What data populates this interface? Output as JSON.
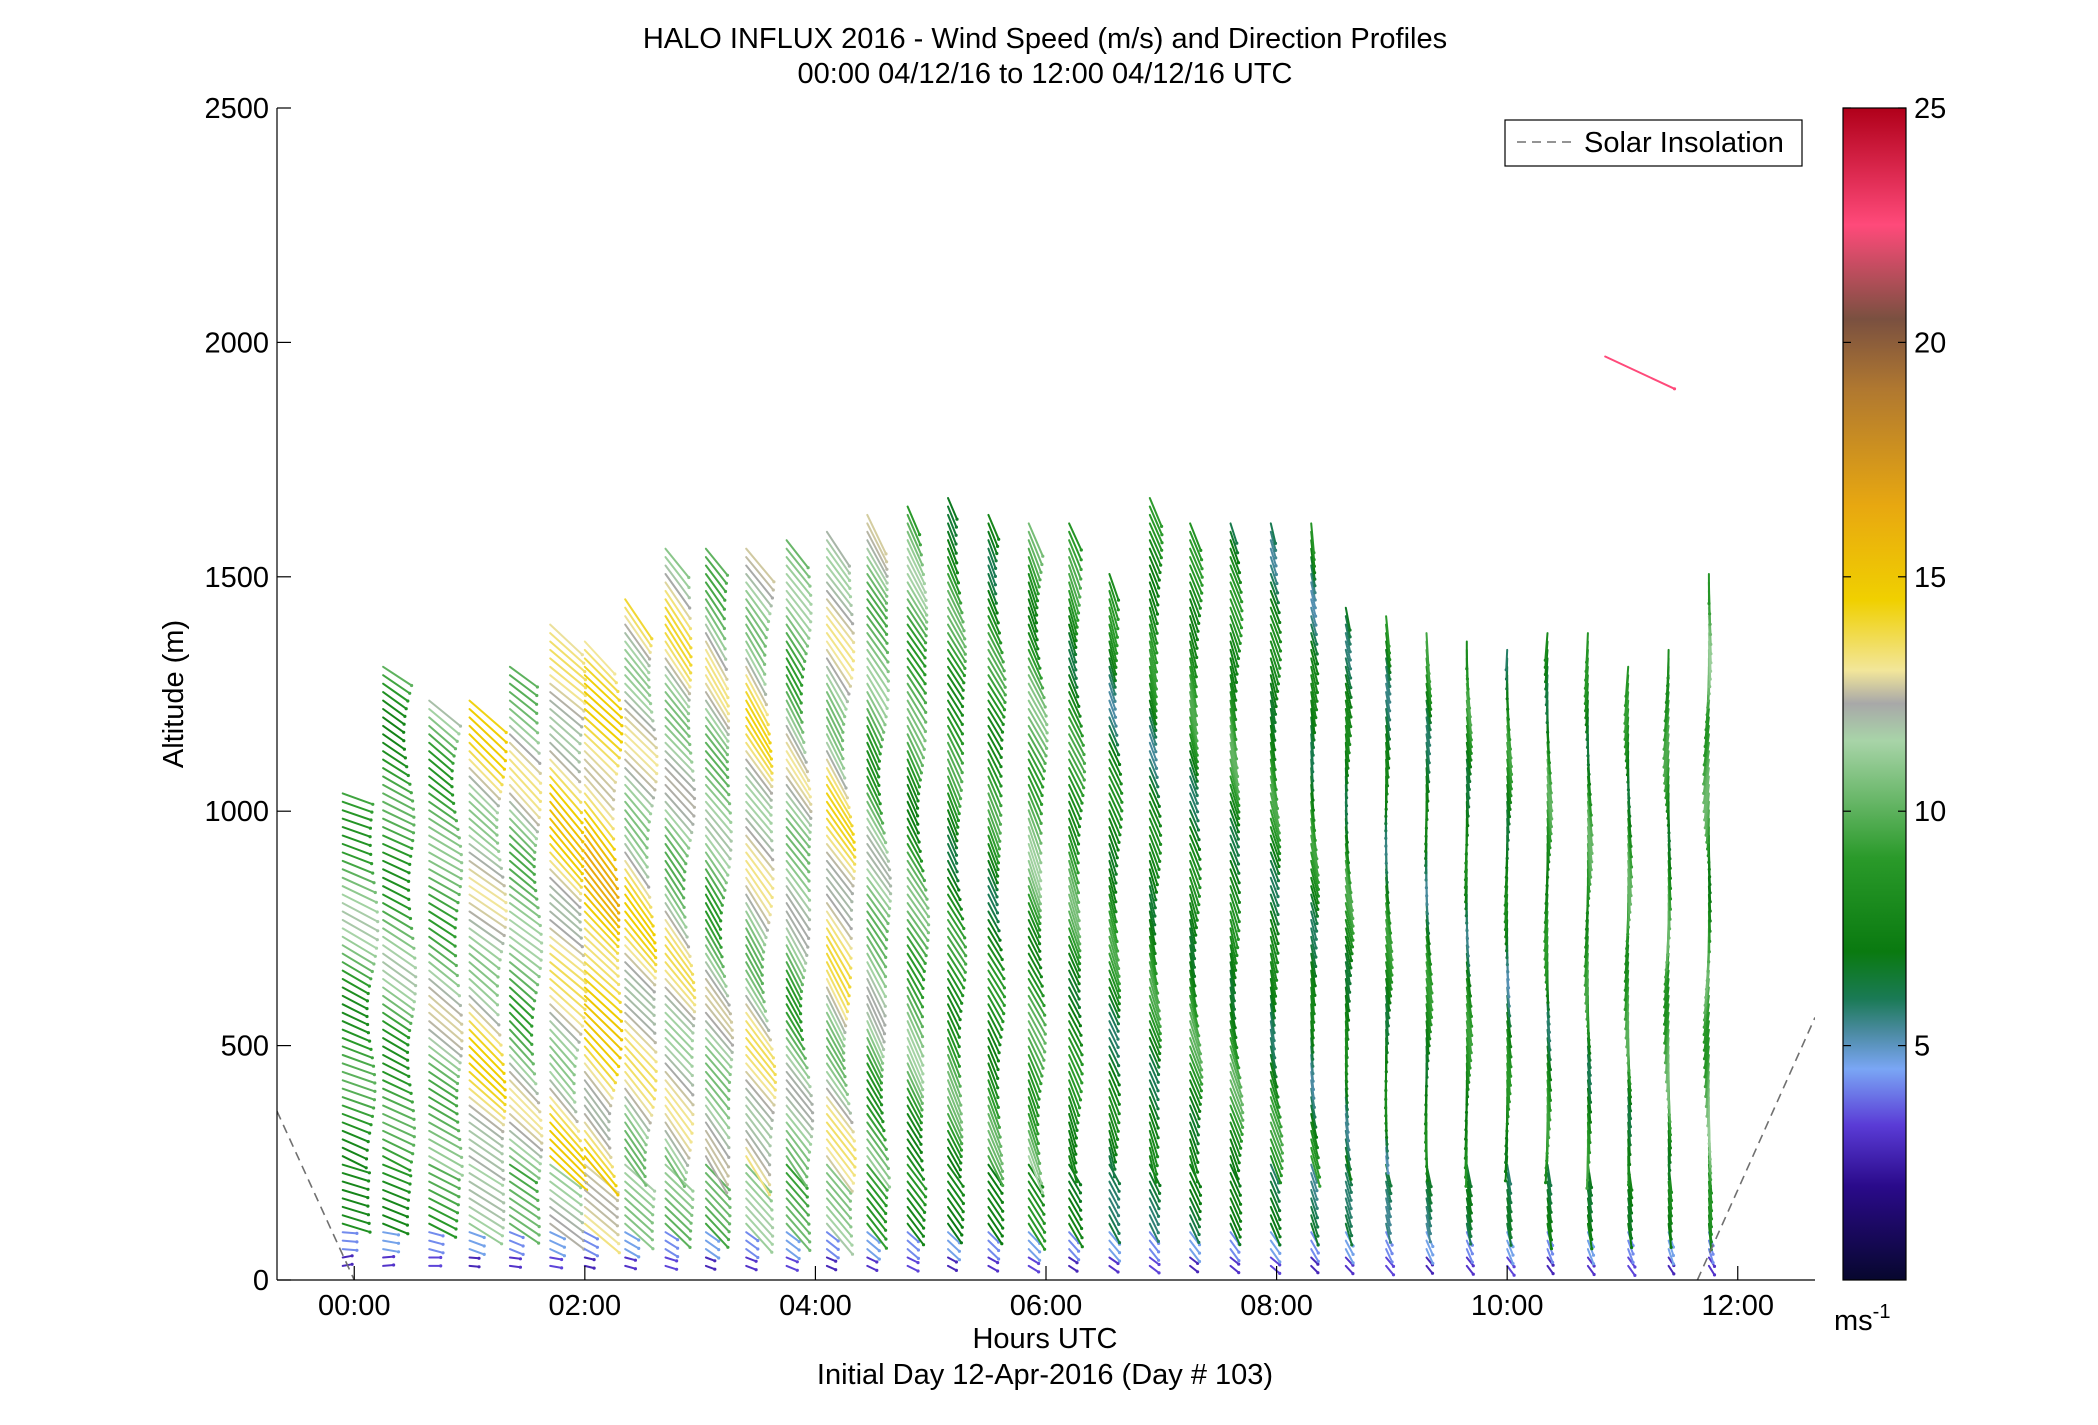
{
  "chart_data": {
    "type": "quiver",
    "title": "HALO INFLUX 2016 - Wind Speed (m/s) and Direction Profiles",
    "subtitle": "00:00 04/12/16 to 12:00 04/12/16  UTC",
    "xlabel": "Hours UTC",
    "xlabel2": "Initial Day 12-Apr-2016 (Day # 103)",
    "ylabel": "Altitude (m)",
    "xlim": [
      -0.67,
      12.67
    ],
    "ylim": [
      0,
      2500
    ],
    "x_ticks": [
      0,
      2,
      4,
      6,
      8,
      10,
      12
    ],
    "x_tick_labels": [
      "00:00",
      "02:00",
      "04:00",
      "06:00",
      "08:00",
      "10:00",
      "12:00"
    ],
    "y_ticks": [
      0,
      500,
      1000,
      1500,
      2000,
      2500
    ],
    "y_tick_labels": [
      "0",
      "500",
      "1000",
      "1500",
      "2000",
      "2500"
    ],
    "grid": false,
    "legend": {
      "location": "top-right",
      "entries": [
        {
          "label": "Solar Insolation",
          "style": "dashed",
          "color": "#707070"
        }
      ]
    },
    "colorbar": {
      "range": [
        0,
        25
      ],
      "ticks": [
        5,
        10,
        15,
        20,
        25
      ],
      "tick_labels": [
        "5",
        "10",
        "15",
        "20",
        "25"
      ],
      "unit_base": "ms",
      "unit_exp": "-1",
      "stops": [
        {
          "v": 0,
          "color": "#07072e"
        },
        {
          "v": 2,
          "color": "#2a0a8a"
        },
        {
          "v": 3.3,
          "color": "#5a3bd6"
        },
        {
          "v": 4.5,
          "color": "#7aa6f5"
        },
        {
          "v": 5.3,
          "color": "#4a8aa0"
        },
        {
          "v": 6,
          "color": "#1a7a55"
        },
        {
          "v": 7,
          "color": "#0a7a10"
        },
        {
          "v": 9,
          "color": "#2a9a2a"
        },
        {
          "v": 11.5,
          "color": "#a8d4a8"
        },
        {
          "v": 12.3,
          "color": "#a8a8a8"
        },
        {
          "v": 13,
          "color": "#f2e69a"
        },
        {
          "v": 14.5,
          "color": "#f0d000"
        },
        {
          "v": 16.5,
          "color": "#e8a810"
        },
        {
          "v": 19,
          "color": "#b07830"
        },
        {
          "v": 20.5,
          "color": "#7a5040"
        },
        {
          "v": 22.5,
          "color": "#ff4a7a"
        },
        {
          "v": 25,
          "color": "#b0001a"
        }
      ]
    },
    "solar_insolation": [
      {
        "x": -0.67,
        "y": 360
      },
      {
        "x": 0.0,
        "y": 0
      },
      {
        "x": 11.65,
        "y": 0
      },
      {
        "x": 12.67,
        "y": 560
      }
    ],
    "profiles": [
      {
        "t": -0.1,
        "top": 1040,
        "speed": 9.5,
        "dir": 295
      },
      {
        "t": 0.25,
        "top": 1310,
        "speed": 9.5,
        "dir": 300
      },
      {
        "t": 0.65,
        "top": 1250,
        "speed": 10.5,
        "dir": 305
      },
      {
        "t": 1.0,
        "top": 1240,
        "speed": 12.5,
        "dir": 310
      },
      {
        "t": 1.35,
        "top": 1320,
        "speed": 11,
        "dir": 312
      },
      {
        "t": 1.7,
        "top": 1400,
        "speed": 13,
        "dir": 315
      },
      {
        "t": 2.0,
        "top": 1370,
        "speed": 14.2,
        "dir": 318
      },
      {
        "t": 2.35,
        "top": 1460,
        "speed": 12.5,
        "dir": 320
      },
      {
        "t": 2.7,
        "top": 1560,
        "speed": 11.8,
        "dir": 322
      },
      {
        "t": 3.05,
        "top": 1560,
        "speed": 11,
        "dir": 325
      },
      {
        "t": 3.4,
        "top": 1560,
        "speed": 12.2,
        "dir": 326
      },
      {
        "t": 3.75,
        "top": 1590,
        "speed": 11,
        "dir": 327
      },
      {
        "t": 4.1,
        "top": 1600,
        "speed": 12.5,
        "dir": 328
      },
      {
        "t": 4.45,
        "top": 1640,
        "speed": 10.5,
        "dir": 330
      },
      {
        "t": 4.8,
        "top": 1650,
        "speed": 9.5,
        "dir": 331
      },
      {
        "t": 5.15,
        "top": 1680,
        "speed": 8.5,
        "dir": 333
      },
      {
        "t": 5.5,
        "top": 1640,
        "speed": 8.2,
        "dir": 334
      },
      {
        "t": 5.85,
        "top": 1630,
        "speed": 9.5,
        "dir": 336
      },
      {
        "t": 6.2,
        "top": 1620,
        "speed": 8.5,
        "dir": 338
      },
      {
        "t": 6.55,
        "top": 1510,
        "speed": 7.5,
        "dir": 340
      },
      {
        "t": 6.9,
        "top": 1680,
        "speed": 7.5,
        "dir": 342
      },
      {
        "t": 7.25,
        "top": 1630,
        "speed": 7.8,
        "dir": 343
      },
      {
        "t": 7.6,
        "top": 1630,
        "speed": 8,
        "dir": 344
      },
      {
        "t": 7.95,
        "top": 1630,
        "speed": 7.5,
        "dir": 345
      },
      {
        "t": 8.3,
        "top": 1620,
        "speed": 7.2,
        "dir": 350
      },
      {
        "t": 8.6,
        "top": 1440,
        "speed": 7.5,
        "dir": 352
      },
      {
        "t": 8.95,
        "top": 1420,
        "speed": 7.2,
        "dir": 355
      },
      {
        "t": 9.3,
        "top": 1380,
        "speed": 7.2,
        "dir": 356
      },
      {
        "t": 9.65,
        "top": 1370,
        "speed": 7.5,
        "dir": 357
      },
      {
        "t": 10.0,
        "top": 1360,
        "speed": 7.3,
        "dir": 358
      },
      {
        "t": 10.35,
        "top": 1390,
        "speed": 8,
        "dir": 359
      },
      {
        "t": 10.7,
        "top": 1380,
        "speed": 8.3,
        "dir": 359
      },
      {
        "t": 11.05,
        "top": 1310,
        "speed": 8.5,
        "dir": 0
      },
      {
        "t": 11.4,
        "top": 1350,
        "speed": 8.8,
        "dir": 2
      },
      {
        "t": 11.75,
        "top": 1520,
        "speed": 9.2,
        "dir": 3
      }
    ],
    "isolated_vectors": [
      {
        "t": 10.85,
        "alt": 1970,
        "speed": 22.5,
        "dir": 295
      }
    ]
  }
}
